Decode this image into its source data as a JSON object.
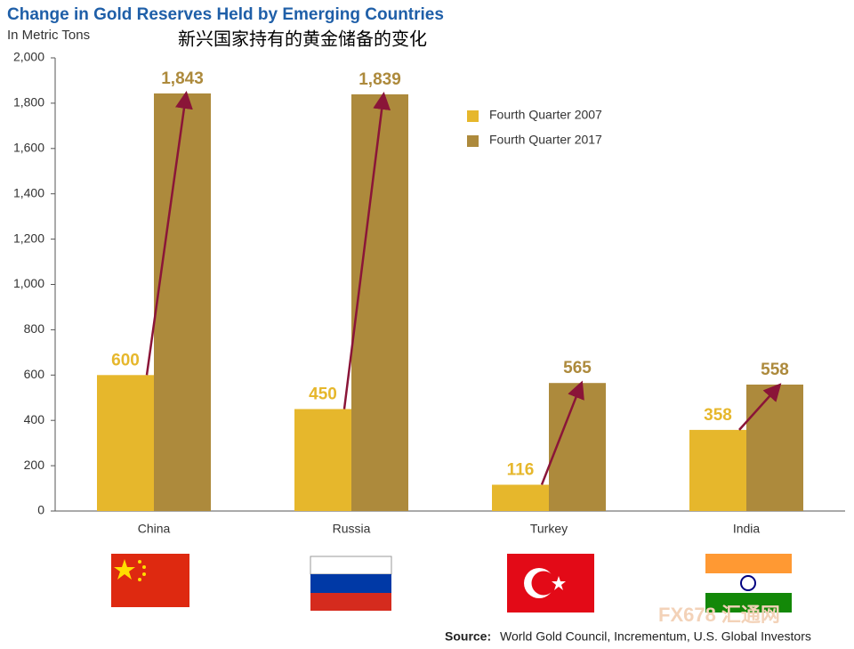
{
  "chart_data": {
    "type": "bar",
    "title": "Change in Gold Reserves Held by Emerging Countries",
    "subtitle": "In Metric Tons",
    "annotation": "新兴国家持有的黄金储备的变化",
    "categories": [
      "China",
      "Russia",
      "Turkey",
      "India"
    ],
    "series": [
      {
        "name": "Fourth Quarter 2007",
        "color": "#e6b72c",
        "values": [
          600,
          450,
          116,
          358
        ]
      },
      {
        "name": "Fourth Quarter 2017",
        "color": "#ad8a3c",
        "values": [
          1843,
          1839,
          565,
          558
        ],
        "value_labels": [
          "1,843",
          "1,839",
          "565",
          "558"
        ]
      }
    ],
    "ylim": [
      0,
      2000
    ],
    "yticks": [
      0,
      200,
      400,
      600,
      800,
      {
        "value": 1000,
        "label": "1,000"
      },
      {
        "value": 1200,
        "label": "1,200"
      },
      {
        "value": 1400,
        "label": "1,400"
      },
      {
        "value": 1600,
        "label": "1,600"
      },
      {
        "value": 1800,
        "label": "1,800"
      },
      {
        "value": 2000,
        "label": "2,000"
      }
    ],
    "arrow_color": "#8a1538",
    "source_label": "Source:",
    "source_text": "World Gold Council, Incrementum, U.S. Global Investors",
    "watermark": "FX678 汇通网"
  }
}
